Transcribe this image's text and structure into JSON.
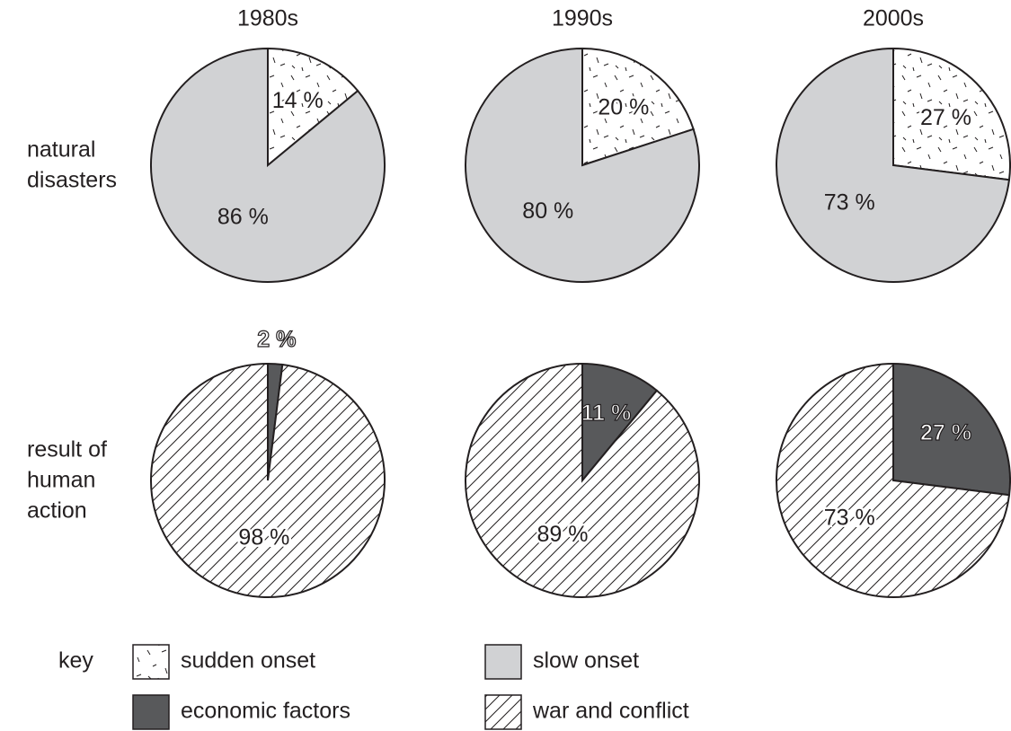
{
  "columns": [
    "1980s",
    "1990s",
    "2000s"
  ],
  "rows": [
    [
      "natural",
      "disasters"
    ],
    [
      "result of",
      "human",
      "action"
    ]
  ],
  "key": {
    "label": "key",
    "items": [
      {
        "name": "sudden onset",
        "pattern": "speckle"
      },
      {
        "name": "slow onset",
        "pattern": "gray"
      },
      {
        "name": "economic factors",
        "pattern": "dark"
      },
      {
        "name": "war and conflict",
        "pattern": "hatch"
      }
    ]
  },
  "chart_data": [
    {
      "type": "pie",
      "values": [
        14,
        86
      ],
      "value_labels": [
        "14 %",
        "86 %"
      ],
      "patterns": [
        "speckle",
        "gray"
      ]
    },
    {
      "type": "pie",
      "values": [
        20,
        80
      ],
      "value_labels": [
        "20 %",
        "80 %"
      ],
      "patterns": [
        "speckle",
        "gray"
      ]
    },
    {
      "type": "pie",
      "values": [
        27,
        73
      ],
      "value_labels": [
        "27 %",
        "73 %"
      ],
      "patterns": [
        "speckle",
        "gray"
      ]
    },
    {
      "type": "pie",
      "values": [
        2,
        98
      ],
      "value_labels": [
        "2 %",
        "98 %"
      ],
      "patterns": [
        "dark",
        "hatch"
      ]
    },
    {
      "type": "pie",
      "values": [
        11,
        89
      ],
      "value_labels": [
        "11 %",
        "89 %"
      ],
      "patterns": [
        "dark",
        "hatch"
      ]
    },
    {
      "type": "pie",
      "values": [
        27,
        73
      ],
      "value_labels": [
        "27 %",
        "73 %"
      ],
      "patterns": [
        "dark",
        "hatch"
      ]
    }
  ]
}
